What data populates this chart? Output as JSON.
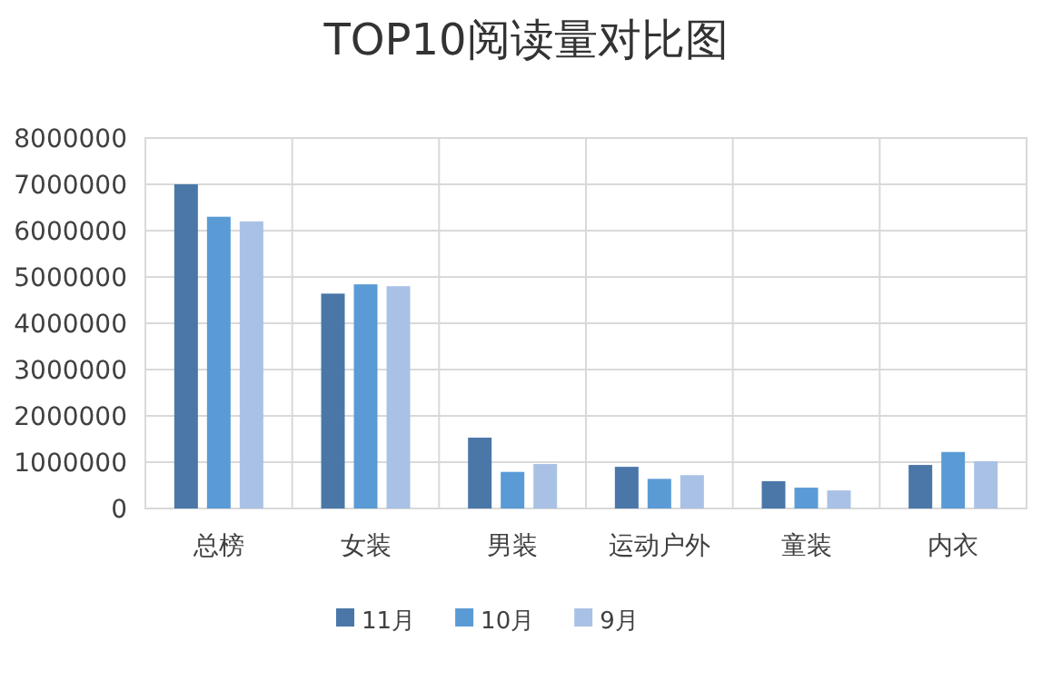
{
  "chart_data": {
    "type": "bar",
    "title": "TOP10阅读量对比图",
    "categories": [
      "总榜",
      "女装",
      "男装",
      "运动户外",
      "童装",
      "内衣"
    ],
    "series": [
      {
        "name": "11月",
        "color": "#4a77a8",
        "values": [
          7000000,
          4640000,
          1530000,
          900000,
          590000,
          940000
        ]
      },
      {
        "name": "10月",
        "color": "#5b9bd5",
        "values": [
          6300000,
          4840000,
          790000,
          640000,
          450000,
          1220000
        ]
      },
      {
        "name": "9月",
        "color": "#a9c1e4",
        "values": [
          6200000,
          4800000,
          960000,
          720000,
          390000,
          1020000
        ]
      }
    ],
    "ylim": [
      0,
      8000000
    ],
    "yticks": [
      0,
      1000000,
      2000000,
      3000000,
      4000000,
      5000000,
      6000000,
      7000000,
      8000000
    ],
    "grid": true,
    "legend": "bottom"
  }
}
